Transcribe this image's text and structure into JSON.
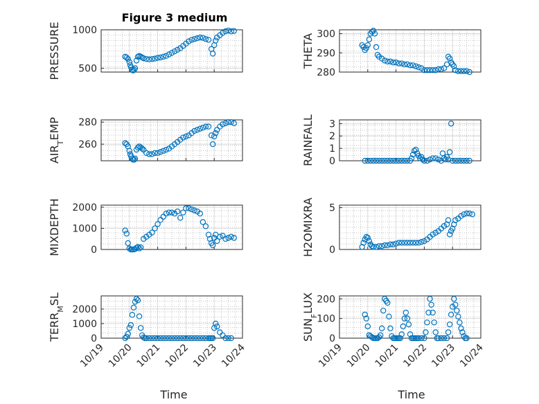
{
  "figure": {
    "title": "Figure 3 medium",
    "x_tick_labels": [
      "10/19",
      "10/20",
      "10/21",
      "10/22",
      "10/23",
      "10/24"
    ],
    "bottom_xlabel": "Time",
    "marker_color": "#0072BD"
  },
  "chart_data": [
    {
      "type": "scatter",
      "ylabel": "PRESSURE",
      "x_range": [
        "10/19",
        "10/24"
      ],
      "ylim": [
        450,
        1000
      ],
      "yticks": [
        500,
        1000
      ],
      "grid": true,
      "x": [
        19.85,
        19.9,
        19.95,
        20.0,
        20.03,
        20.06,
        20.1,
        20.13,
        20.17,
        20.2,
        20.25,
        20.3,
        20.35,
        20.4,
        20.45,
        20.5,
        20.6,
        20.7,
        20.8,
        20.9,
        21.0,
        21.1,
        21.2,
        21.3,
        21.4,
        21.5,
        21.6,
        21.7,
        21.8,
        21.9,
        22.0,
        22.1,
        22.2,
        22.3,
        22.4,
        22.5,
        22.6,
        22.7,
        22.8,
        22.9,
        22.95,
        23.0,
        23.05,
        23.1,
        23.2,
        23.3,
        23.4,
        23.5,
        23.6,
        23.7
      ],
      "y": [
        650,
        640,
        620,
        580,
        540,
        510,
        480,
        470,
        480,
        500,
        600,
        650,
        660,
        650,
        640,
        630,
        620,
        615,
        620,
        625,
        635,
        640,
        650,
        660,
        680,
        700,
        720,
        740,
        760,
        790,
        820,
        850,
        870,
        880,
        890,
        900,
        895,
        880,
        870,
        750,
        690,
        800,
        860,
        900,
        930,
        960,
        980,
        990,
        980,
        985
      ]
    },
    {
      "type": "scatter",
      "ylabel": "THETA",
      "x_range": [
        "10/19",
        "10/24"
      ],
      "ylim": [
        280,
        302
      ],
      "yticks": [
        280,
        290,
        300
      ],
      "grid": true,
      "x": [
        19.8,
        19.85,
        19.9,
        19.95,
        20.0,
        20.05,
        20.1,
        20.15,
        20.2,
        20.25,
        20.3,
        20.35,
        20.4,
        20.5,
        20.6,
        20.7,
        20.8,
        20.9,
        21.0,
        21.1,
        21.2,
        21.3,
        21.4,
        21.5,
        21.6,
        21.7,
        21.8,
        21.9,
        22.0,
        22.1,
        22.2,
        22.3,
        22.4,
        22.5,
        22.6,
        22.7,
        22.8,
        22.85,
        22.9,
        22.95,
        23.0,
        23.05,
        23.1,
        23.2,
        23.3,
        23.4,
        23.5,
        23.6
      ],
      "y": [
        294,
        293,
        291.5,
        292.5,
        294,
        297,
        300,
        301,
        301.5,
        300,
        293,
        289,
        288,
        287,
        286,
        285.5,
        285.5,
        285,
        285,
        284.5,
        284.5,
        284,
        284,
        283.5,
        283.5,
        283,
        282.5,
        282,
        281,
        281,
        281,
        281,
        281,
        281.5,
        281.5,
        282,
        284,
        288,
        287,
        285,
        284,
        283,
        281,
        280.5,
        280.5,
        280.5,
        280.5,
        280
      ]
    },
    {
      "type": "scatter",
      "ylabel": "AIR_TEMP",
      "x_range": [
        "10/19",
        "10/24"
      ],
      "ylim": [
        245,
        282
      ],
      "yticks": [
        260,
        280
      ],
      "grid": true,
      "x": [
        19.85,
        19.9,
        19.95,
        20.0,
        20.03,
        20.06,
        20.1,
        20.13,
        20.17,
        20.2,
        20.25,
        20.3,
        20.35,
        20.4,
        20.45,
        20.5,
        20.6,
        20.7,
        20.8,
        20.9,
        21.0,
        21.1,
        21.2,
        21.3,
        21.4,
        21.5,
        21.6,
        21.7,
        21.8,
        21.9,
        22.0,
        22.1,
        22.2,
        22.3,
        22.4,
        22.5,
        22.6,
        22.7,
        22.8,
        22.9,
        22.95,
        23.0,
        23.05,
        23.1,
        23.2,
        23.3,
        23.4,
        23.5,
        23.6,
        23.7
      ],
      "y": [
        261,
        260,
        258,
        254,
        251,
        249,
        247,
        246,
        246,
        247,
        255,
        257,
        258,
        257,
        256,
        255,
        252,
        251,
        251,
        252,
        252,
        253,
        254,
        255,
        256,
        258,
        260,
        262,
        264,
        266,
        267,
        268,
        270,
        272,
        273,
        274,
        275,
        276,
        276,
        268,
        260,
        267,
        270,
        273,
        276,
        278,
        279,
        280,
        280,
        279
      ]
    },
    {
      "type": "scatter",
      "ylabel": "RAINFALL",
      "x_range": [
        "10/19",
        "10/24"
      ],
      "ylim": [
        0,
        3.3
      ],
      "yticks": [
        0,
        1,
        2,
        3
      ],
      "grid": true,
      "x": [
        19.9,
        20.0,
        20.1,
        20.2,
        20.3,
        20.4,
        20.5,
        20.6,
        20.7,
        20.8,
        20.9,
        21.0,
        21.1,
        21.2,
        21.3,
        21.4,
        21.5,
        21.55,
        21.6,
        21.65,
        21.7,
        21.75,
        21.8,
        21.85,
        21.9,
        21.95,
        22.0,
        22.1,
        22.2,
        22.3,
        22.4,
        22.5,
        22.6,
        22.65,
        22.7,
        22.75,
        22.8,
        22.85,
        22.9,
        22.95,
        23.0,
        23.1,
        23.2,
        23.3,
        23.4,
        23.5,
        23.6
      ],
      "y": [
        0,
        0,
        0,
        0,
        0,
        0,
        0,
        0,
        0,
        0,
        0,
        0,
        0,
        0,
        0,
        0,
        0,
        0.2,
        0.5,
        0.8,
        0.9,
        0.6,
        0.4,
        0.2,
        0.3,
        0.1,
        0,
        0,
        0.1,
        0.2,
        0.2,
        0.1,
        0,
        0.6,
        0.2,
        0.1,
        0.3,
        0.1,
        0.7,
        3.0,
        0,
        0,
        0,
        0,
        0,
        0,
        0
      ]
    },
    {
      "type": "scatter",
      "ylabel": "MIXDEPTH",
      "x_range": [
        "10/19",
        "10/24"
      ],
      "ylim": [
        0,
        2100
      ],
      "yticks": [
        0,
        1000,
        2000
      ],
      "grid": true,
      "x": [
        19.85,
        19.9,
        19.95,
        20.0,
        20.05,
        20.1,
        20.15,
        20.2,
        20.25,
        20.3,
        20.35,
        20.4,
        20.5,
        20.6,
        20.7,
        20.8,
        20.9,
        21.0,
        21.1,
        21.2,
        21.3,
        21.4,
        21.5,
        21.6,
        21.7,
        21.8,
        21.9,
        22.0,
        22.1,
        22.2,
        22.3,
        22.4,
        22.5,
        22.6,
        22.7,
        22.8,
        22.85,
        22.9,
        22.95,
        23.0,
        23.05,
        23.1,
        23.2,
        23.3,
        23.4,
        23.5,
        23.6,
        23.7
      ],
      "y": [
        900,
        750,
        300,
        50,
        0,
        0,
        0,
        20,
        80,
        120,
        50,
        100,
        500,
        600,
        700,
        800,
        1000,
        1200,
        1400,
        1550,
        1700,
        1750,
        1750,
        1700,
        1800,
        1500,
        1750,
        1950,
        1950,
        1900,
        1850,
        1800,
        1700,
        1300,
        1100,
        700,
        500,
        300,
        200,
        550,
        700,
        400,
        600,
        650,
        500,
        550,
        600,
        550
      ]
    },
    {
      "type": "scatter",
      "ylabel": "H2OMIXRA",
      "x_range": [
        "10/19",
        "10/24"
      ],
      "ylim": [
        0,
        5.3
      ],
      "yticks": [
        0,
        5
      ],
      "grid": true,
      "x": [
        19.8,
        19.85,
        19.9,
        19.95,
        20.0,
        20.05,
        20.1,
        20.15,
        20.2,
        20.3,
        20.4,
        20.5,
        20.6,
        20.7,
        20.8,
        20.9,
        21.0,
        21.1,
        21.2,
        21.3,
        21.4,
        21.5,
        21.6,
        21.7,
        21.8,
        21.9,
        22.0,
        22.1,
        22.2,
        22.3,
        22.4,
        22.5,
        22.6,
        22.7,
        22.8,
        22.85,
        22.9,
        22.95,
        23.0,
        23.05,
        23.1,
        23.2,
        23.3,
        23.4,
        23.5,
        23.6,
        23.7
      ],
      "y": [
        0.3,
        0.8,
        1.2,
        1.5,
        1.4,
        1.0,
        0.6,
        0.4,
        0.3,
        0.3,
        0.4,
        0.4,
        0.5,
        0.5,
        0.6,
        0.6,
        0.7,
        0.8,
        0.8,
        0.8,
        0.8,
        0.8,
        0.8,
        0.8,
        0.8,
        0.9,
        1.0,
        1.2,
        1.5,
        1.8,
        2.0,
        2.2,
        2.5,
        2.8,
        3.0,
        3.5,
        1.8,
        2.2,
        2.5,
        3.0,
        3.5,
        3.7,
        4.0,
        4.2,
        4.3,
        4.3,
        4.2
      ]
    },
    {
      "type": "scatter",
      "ylabel": "TERR_MSL",
      "x_range": [
        "10/19",
        "10/24"
      ],
      "ylim": [
        0,
        2900
      ],
      "yticks": [
        0,
        1000,
        2000
      ],
      "grid": true,
      "x": [
        19.85,
        19.9,
        19.95,
        20.0,
        20.05,
        20.1,
        20.15,
        20.2,
        20.25,
        20.3,
        20.35,
        20.4,
        20.45,
        20.5,
        20.55,
        20.6,
        20.7,
        20.8,
        20.9,
        21.0,
        21.1,
        21.2,
        21.3,
        21.4,
        21.5,
        21.6,
        21.7,
        21.8,
        21.9,
        22.0,
        22.1,
        22.2,
        22.3,
        22.4,
        22.5,
        22.6,
        22.7,
        22.8,
        22.85,
        22.9,
        22.95,
        23.0,
        23.05,
        23.1,
        23.2,
        23.3,
        23.4,
        23.5,
        23.6
      ],
      "y": [
        0,
        100,
        300,
        700,
        900,
        1600,
        2100,
        2500,
        2700,
        2600,
        1500,
        700,
        200,
        50,
        0,
        0,
        0,
        0,
        0,
        0,
        0,
        0,
        0,
        0,
        0,
        0,
        0,
        0,
        0,
        0,
        0,
        0,
        0,
        0,
        0,
        0,
        0,
        0,
        0,
        0,
        0,
        700,
        1000,
        800,
        400,
        200,
        0,
        0,
        0
      ]
    },
    {
      "type": "scatter",
      "ylabel": "SUN_FLUX",
      "x_range": [
        "10/19",
        "10/24"
      ],
      "ylim": [
        0,
        215
      ],
      "yticks": [
        0,
        100,
        200
      ],
      "grid": true,
      "x": [
        19.9,
        19.95,
        20.0,
        20.05,
        20.1,
        20.15,
        20.2,
        20.25,
        20.3,
        20.35,
        20.4,
        20.45,
        20.5,
        20.55,
        20.6,
        20.65,
        20.7,
        20.75,
        20.8,
        20.85,
        20.9,
        20.95,
        21.0,
        21.05,
        21.1,
        21.15,
        21.2,
        21.25,
        21.3,
        21.35,
        21.4,
        21.45,
        21.5,
        21.55,
        21.6,
        21.65,
        21.7,
        21.75,
        21.8,
        21.9,
        22.0,
        22.05,
        22.1,
        22.15,
        22.2,
        22.25,
        22.3,
        22.35,
        22.4,
        22.45,
        22.5,
        22.6,
        22.7,
        22.8,
        22.85,
        22.9,
        22.95,
        23.0,
        23.05,
        23.1,
        23.15,
        23.2,
        23.25,
        23.3,
        23.35,
        23.4,
        23.45,
        23.5
      ],
      "y": [
        120,
        100,
        60,
        15,
        10,
        5,
        0,
        0,
        0,
        0,
        5,
        15,
        50,
        140,
        200,
        190,
        180,
        110,
        50,
        10,
        0,
        0,
        0,
        0,
        0,
        0,
        20,
        60,
        100,
        130,
        100,
        70,
        20,
        0,
        0,
        0,
        0,
        0,
        0,
        0,
        0,
        30,
        80,
        130,
        200,
        170,
        130,
        80,
        30,
        0,
        0,
        0,
        0,
        0,
        30,
        70,
        120,
        160,
        200,
        170,
        140,
        110,
        80,
        50,
        30,
        10,
        0,
        0
      ]
    }
  ]
}
